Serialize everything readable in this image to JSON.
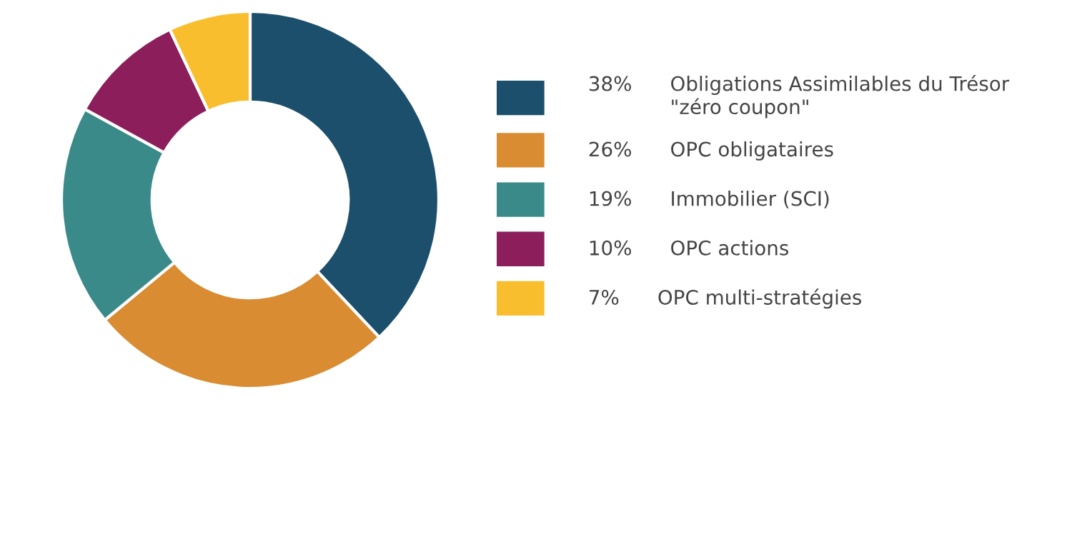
{
  "chart_data": {
    "type": "donut",
    "categories": [
      "Obligations Assimilables du Trésor\n\"zéro coupon\"",
      "OPC obligataires",
      "Immobilier (SCI)",
      "OPC actions",
      "OPC multi-stratégies"
    ],
    "values": [
      38,
      26,
      19,
      10,
      7
    ],
    "value_labels": [
      "38%",
      "26%",
      "19%",
      "10%",
      "7%"
    ],
    "colors": [
      "#1b4f6b",
      "#d98c32",
      "#3a8a8a",
      "#8b1e5b",
      "#f9be2e"
    ],
    "legend": "right"
  }
}
